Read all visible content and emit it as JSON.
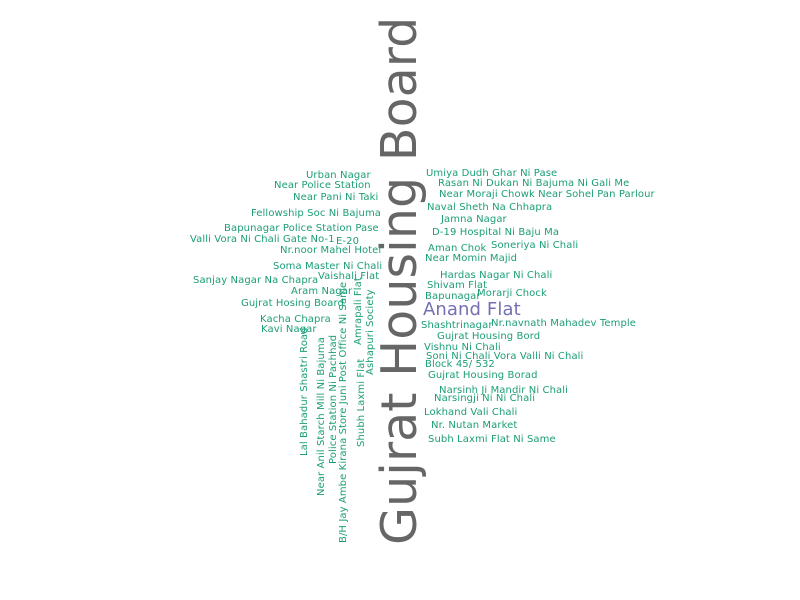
{
  "colors": {
    "main": "#666666",
    "accent": "#7570b3",
    "text": "#1b9e77"
  },
  "words": {
    "w00": "Gujrat Housing Board",
    "w01": "Anand Flat",
    "w02": "Urban Nagar",
    "w03": "Near Police Station",
    "w04": "Near Pani Ni Taki",
    "w05": "Fellowship Soc Ni Bajuma",
    "w06": "Bapunagar Police Station Pase",
    "w07": "Valli Vora Ni Chali Gate No-1",
    "w08": "E-20",
    "w09": "Nr.noor Mahel Hotel",
    "w10": "Soma Master Ni Chali",
    "w11": "Vaishali Flat",
    "w12": "Sanjay Nagar Na Chapra",
    "w13": "Aram Nagar",
    "w14": "Gujrat Hosing Board",
    "w15": "Kacha Chapra",
    "w16": "Kavi Nagar",
    "w17": "Umiya Dudh Ghar Ni Pase",
    "w18": "Rasan Ni Dukan Ni Bajuma Ni Gali Me",
    "w19": "Near Moraji Chowk Near Sohel Pan Parlour",
    "w20": "Naval Sheth Na Chhapra",
    "w21": "Jamna Nagar",
    "w22": "D-19 Hospital Ni Baju Ma",
    "w23": "Aman Chok",
    "w24": "Soneriya Ni Chali",
    "w25": "Near Momin Majid",
    "w26": "Hardas Nagar Ni Chali",
    "w27": "Shivam Flat",
    "w28": "Bapunagar",
    "w29": "Morarji Chock",
    "w30": "Shashtrinagar",
    "w31": "Nr.navnath Mahadev Temple",
    "w32": "Gujrat Housing Bord",
    "w33": "Vishnu Ni Chali",
    "w34": "Soni Ni Chali Vora Valli Ni Chali",
    "w35": "Block 45/ 532",
    "w36": "Gujrat Housing Borad",
    "w37": "Narsinh Ji Mandir Ni Chali",
    "w38": "Narsingji Ni Ni Chali",
    "w39": "Lokhand Vali Chali",
    "w40": "Nr. Nutan Market",
    "w41": "Subh Laxmi Flat Ni Same",
    "w42": "Lal Bahadur Shastri Road",
    "w43": "Near Anil Starch Mill Ni Bajuma",
    "w44": "Police Station Ni Pachhad",
    "w45": "B/H Jay Ambe Kirana Store Juni Post Office Ni Same",
    "w46": "Shubh Laxmi Flat",
    "w47": "Amrapali Flat",
    "w48": "Ashapuri Society"
  }
}
